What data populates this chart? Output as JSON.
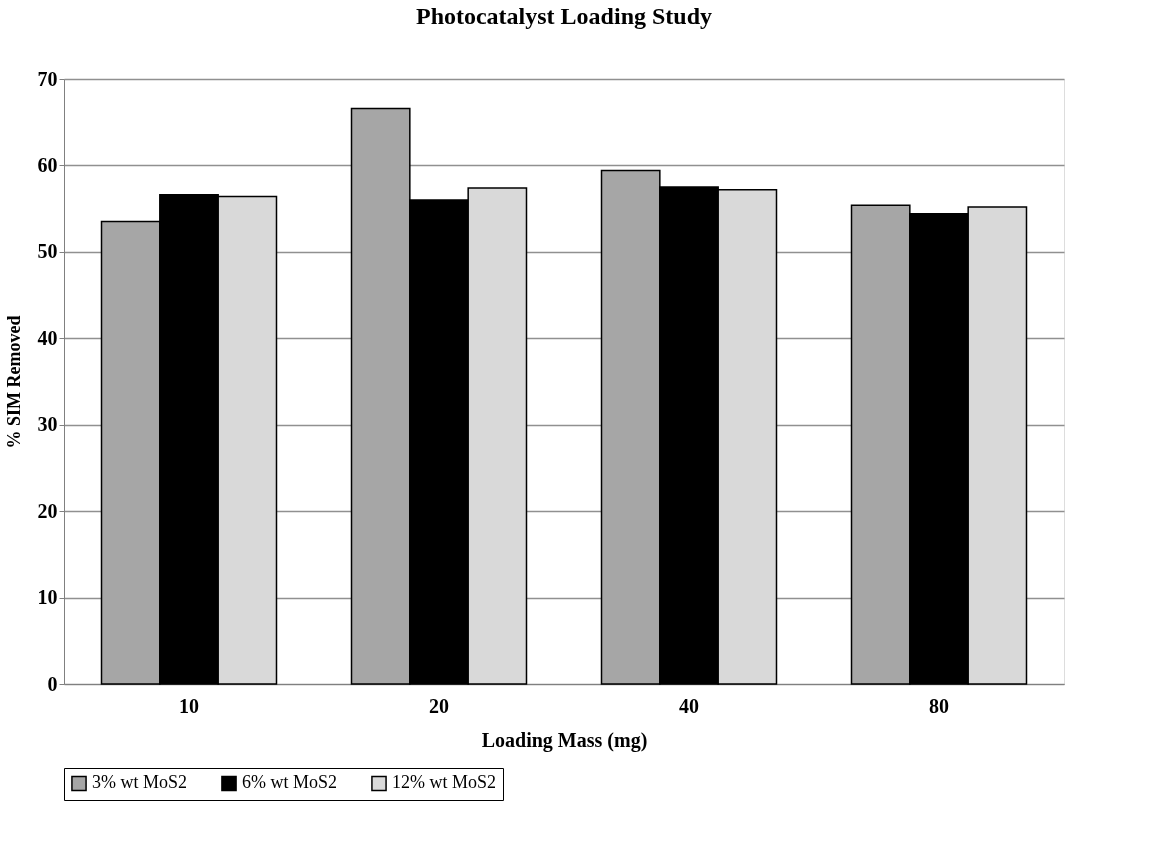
{
  "chart_data": {
    "type": "bar",
    "title": "Photocatalyst Loading Study",
    "xlabel": "Loading Mass (mg)",
    "ylabel": "% SIM Removed",
    "categories": [
      "10",
      "20",
      "40",
      "80"
    ],
    "series": [
      {
        "name": "3% wt MoS2",
        "color": "#a6a6a6",
        "values": [
          53.5,
          66.6,
          59.4,
          55.4
        ]
      },
      {
        "name": "6% wt MoS2",
        "color": "#000000",
        "values": [
          56.6,
          56.0,
          57.5,
          54.4
        ]
      },
      {
        "name": "12% wt MoS2",
        "color": "#d9d9d9",
        "values": [
          56.4,
          57.4,
          57.2,
          55.2
        ]
      }
    ],
    "ylim": [
      0,
      70
    ],
    "yticks": [
      0,
      10,
      20,
      30,
      40,
      50,
      60,
      70
    ],
    "grid": "y",
    "legend": "bottom"
  }
}
